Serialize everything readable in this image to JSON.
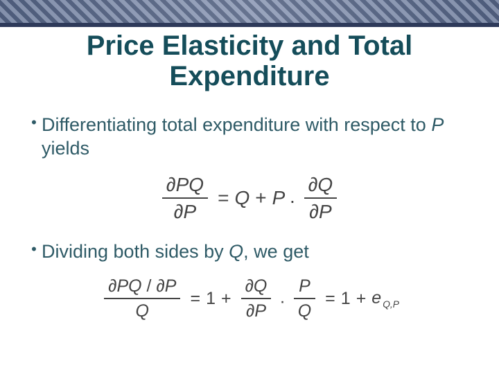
{
  "colors": {
    "title": "#154d5a",
    "body_text": "#2e5a66",
    "equation": "#444444",
    "banner_border": "#2e3a5a"
  },
  "typography": {
    "title_fontsize": 40,
    "body_fontsize": 27,
    "bullet_fontsize": 22,
    "eq1_fontsize": 28,
    "eq2_fontsize": 25
  },
  "title": {
    "line1": "Price Elasticity and Total",
    "line2": "Expenditure"
  },
  "bullets": {
    "dot": "•",
    "b1_part1": "Differentiating total expenditure with respect to ",
    "b1_italic": "P",
    "b1_part2": " yields",
    "b2_part1": "Dividing both sides by ",
    "b2_italic": "Q",
    "b2_part2": ", we get"
  },
  "eq1": {
    "lhs_num": "∂PQ",
    "lhs_den": "∂P",
    "equals": "=",
    "Q": "Q",
    "plus": "+",
    "P": "P",
    "dot": "·",
    "rhs_num": "∂Q",
    "rhs_den": "∂P"
  },
  "eq2": {
    "lhs_num_a": "∂PQ",
    "lhs_num_slash": " / ",
    "lhs_num_b": "∂P",
    "lhs_den": "Q",
    "equals": "=",
    "one": "1",
    "plus": "+",
    "frac2_num": "∂Q",
    "frac2_den": "∂P",
    "dot": "·",
    "frac3_num": "P",
    "frac3_den": "Q",
    "equals2": "=",
    "one2": "1",
    "plus2": "+",
    "e": "e",
    "e_sub": "Q,P"
  }
}
